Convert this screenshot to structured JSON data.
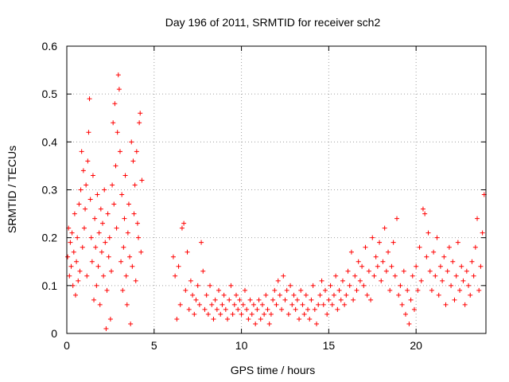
{
  "chart_data": {
    "type": "scatter",
    "title": "Day 196 of 2011, SRMTID for receiver sch2",
    "xlabel": "GPS time / hours",
    "ylabel": "SRMTID / TECUs",
    "xlim": [
      0,
      24
    ],
    "ylim": [
      0,
      0.6
    ],
    "x_ticks": [
      0,
      5,
      10,
      15,
      20
    ],
    "x_tick_labels": [
      "0",
      "5",
      "10",
      "15",
      "20"
    ],
    "y_ticks": [
      0,
      0.1,
      0.2,
      0.3,
      0.4,
      0.5,
      0.6
    ],
    "y_tick_labels": [
      "0",
      "0.1",
      "0.2",
      "0.3",
      "0.4",
      "0.5",
      "0.6"
    ],
    "grid": true,
    "marker": "plus",
    "color": "#ff0000",
    "series": [
      {
        "name": "sch2",
        "points": [
          [
            0.05,
            0.16
          ],
          [
            0.1,
            0.22
          ],
          [
            0.15,
            0.12
          ],
          [
            0.2,
            0.19
          ],
          [
            0.25,
            0.14
          ],
          [
            0.3,
            0.21
          ],
          [
            0.35,
            0.1
          ],
          [
            0.4,
            0.17
          ],
          [
            0.45,
            0.25
          ],
          [
            0.5,
            0.08
          ],
          [
            0.55,
            0.15
          ],
          [
            0.6,
            0.2
          ],
          [
            0.65,
            0.11
          ],
          [
            0.7,
            0.27
          ],
          [
            0.75,
            0.13
          ],
          [
            0.8,
            0.3
          ],
          [
            0.85,
            0.38
          ],
          [
            0.9,
            0.18
          ],
          [
            0.95,
            0.34
          ],
          [
            1.0,
            0.22
          ],
          [
            1.05,
            0.26
          ],
          [
            1.1,
            0.31
          ],
          [
            1.15,
            0.12
          ],
          [
            1.2,
            0.36
          ],
          [
            1.25,
            0.42
          ],
          [
            1.3,
            0.49
          ],
          [
            1.35,
            0.28
          ],
          [
            1.4,
            0.2
          ],
          [
            1.45,
            0.15
          ],
          [
            1.5,
            0.33
          ],
          [
            1.55,
            0.07
          ],
          [
            1.6,
            0.24
          ],
          [
            1.65,
            0.18
          ],
          [
            1.7,
            0.1
          ],
          [
            1.75,
            0.29
          ],
          [
            1.8,
            0.14
          ],
          [
            1.85,
            0.21
          ],
          [
            1.9,
            0.06
          ],
          [
            1.95,
            0.26
          ],
          [
            2.0,
            0.17
          ],
          [
            2.05,
            0.23
          ],
          [
            2.1,
            0.12
          ],
          [
            2.15,
            0.3
          ],
          [
            2.2,
            0.19
          ],
          [
            2.25,
            0.01
          ],
          [
            2.3,
            0.09
          ],
          [
            2.35,
            0.25
          ],
          [
            2.4,
            0.16
          ],
          [
            2.45,
            0.2
          ],
          [
            2.5,
            0.03
          ],
          [
            2.55,
            0.13
          ],
          [
            2.6,
            0.31
          ],
          [
            2.65,
            0.44
          ],
          [
            2.7,
            0.27
          ],
          [
            2.75,
            0.48
          ],
          [
            2.8,
            0.35
          ],
          [
            2.85,
            0.22
          ],
          [
            2.9,
            0.42
          ],
          [
            2.95,
            0.54
          ],
          [
            3.0,
            0.51
          ],
          [
            3.05,
            0.38
          ],
          [
            3.1,
            0.15
          ],
          [
            3.15,
            0.29
          ],
          [
            3.2,
            0.09
          ],
          [
            3.25,
            0.18
          ],
          [
            3.3,
            0.24
          ],
          [
            3.35,
            0.33
          ],
          [
            3.4,
            0.12
          ],
          [
            3.45,
            0.06
          ],
          [
            3.5,
            0.21
          ],
          [
            3.55,
            0.27
          ],
          [
            3.6,
            0.16
          ],
          [
            3.65,
            0.02
          ],
          [
            3.7,
            0.4
          ],
          [
            3.75,
            0.14
          ],
          [
            3.8,
            0.36
          ],
          [
            3.85,
            0.25
          ],
          [
            3.9,
            0.31
          ],
          [
            3.95,
            0.11
          ],
          [
            4.0,
            0.38
          ],
          [
            4.05,
            0.23
          ],
          [
            4.1,
            0.2
          ],
          [
            4.15,
            0.44
          ],
          [
            4.2,
            0.46
          ],
          [
            4.25,
            0.17
          ],
          [
            4.3,
            0.32
          ],
          [
            6.1,
            0.16
          ],
          [
            6.2,
            0.12
          ],
          [
            6.3,
            0.03
          ],
          [
            6.4,
            0.14
          ],
          [
            6.5,
            0.06
          ],
          [
            6.6,
            0.22
          ],
          [
            6.7,
            0.23
          ],
          [
            6.8,
            0.09
          ],
          [
            6.9,
            0.17
          ],
          [
            7.0,
            0.05
          ],
          [
            7.1,
            0.11
          ],
          [
            7.2,
            0.08
          ],
          [
            7.3,
            0.04
          ],
          [
            7.4,
            0.07
          ],
          [
            7.5,
            0.1
          ],
          [
            7.6,
            0.06
          ],
          [
            7.7,
            0.19
          ],
          [
            7.8,
            0.13
          ],
          [
            7.9,
            0.05
          ],
          [
            8.0,
            0.08
          ],
          [
            8.1,
            0.04
          ],
          [
            8.2,
            0.1
          ],
          [
            8.3,
            0.06
          ],
          [
            8.4,
            0.03
          ],
          [
            8.5,
            0.07
          ],
          [
            8.6,
            0.05
          ],
          [
            8.7,
            0.09
          ],
          [
            8.8,
            0.04
          ],
          [
            8.9,
            0.06
          ],
          [
            9.0,
            0.08
          ],
          [
            9.1,
            0.05
          ],
          [
            9.2,
            0.03
          ],
          [
            9.3,
            0.07
          ],
          [
            9.4,
            0.1
          ],
          [
            9.5,
            0.04
          ],
          [
            9.6,
            0.06
          ],
          [
            9.7,
            0.08
          ],
          [
            9.8,
            0.05
          ],
          [
            9.9,
            0.07
          ],
          [
            10.0,
            0.04
          ],
          [
            10.1,
            0.06
          ],
          [
            10.2,
            0.09
          ],
          [
            10.3,
            0.05
          ],
          [
            10.4,
            0.03
          ],
          [
            10.5,
            0.07
          ],
          [
            10.6,
            0.04
          ],
          [
            10.7,
            0.06
          ],
          [
            10.8,
            0.02
          ],
          [
            10.9,
            0.05
          ],
          [
            11.0,
            0.07
          ],
          [
            11.1,
            0.03
          ],
          [
            11.2,
            0.06
          ],
          [
            11.3,
            0.04
          ],
          [
            11.4,
            0.08
          ],
          [
            11.5,
            0.05
          ],
          [
            11.6,
            0.02
          ],
          [
            11.7,
            0.04
          ],
          [
            11.8,
            0.07
          ],
          [
            11.9,
            0.09
          ],
          [
            12.0,
            0.06
          ],
          [
            12.1,
            0.11
          ],
          [
            12.2,
            0.08
          ],
          [
            12.3,
            0.05
          ],
          [
            12.4,
            0.12
          ],
          [
            12.5,
            0.07
          ],
          [
            12.6,
            0.09
          ],
          [
            12.7,
            0.04
          ],
          [
            12.8,
            0.1
          ],
          [
            12.9,
            0.06
          ],
          [
            13.0,
            0.08
          ],
          [
            13.1,
            0.05
          ],
          [
            13.2,
            0.07
          ],
          [
            13.3,
            0.03
          ],
          [
            13.4,
            0.09
          ],
          [
            13.5,
            0.06
          ],
          [
            13.6,
            0.04
          ],
          [
            13.7,
            0.08
          ],
          [
            13.8,
            0.05
          ],
          [
            13.9,
            0.03
          ],
          [
            14.0,
            0.07
          ],
          [
            14.1,
            0.1
          ],
          [
            14.2,
            0.05
          ],
          [
            14.3,
            0.02
          ],
          [
            14.4,
            0.06
          ],
          [
            14.5,
            0.08
          ],
          [
            14.6,
            0.11
          ],
          [
            14.7,
            0.06
          ],
          [
            14.8,
            0.09
          ],
          [
            14.9,
            0.04
          ],
          [
            15.0,
            0.07
          ],
          [
            15.1,
            0.1
          ],
          [
            15.2,
            0.06
          ],
          [
            15.3,
            0.08
          ],
          [
            15.4,
            0.12
          ],
          [
            15.5,
            0.05
          ],
          [
            15.6,
            0.09
          ],
          [
            15.7,
            0.07
          ],
          [
            15.8,
            0.11
          ],
          [
            15.9,
            0.06
          ],
          [
            16.0,
            0.08
          ],
          [
            16.1,
            0.13
          ],
          [
            16.2,
            0.1
          ],
          [
            16.3,
            0.17
          ],
          [
            16.4,
            0.07
          ],
          [
            16.5,
            0.12
          ],
          [
            16.6,
            0.09
          ],
          [
            16.7,
            0.15
          ],
          [
            16.8,
            0.11
          ],
          [
            16.9,
            0.14
          ],
          [
            17.0,
            0.1
          ],
          [
            17.1,
            0.18
          ],
          [
            17.2,
            0.08
          ],
          [
            17.3,
            0.13
          ],
          [
            17.4,
            0.07
          ],
          [
            17.5,
            0.2
          ],
          [
            17.6,
            0.12
          ],
          [
            17.7,
            0.16
          ],
          [
            17.8,
            0.14
          ],
          [
            17.9,
            0.19
          ],
          [
            18.0,
            0.11
          ],
          [
            18.1,
            0.15
          ],
          [
            18.2,
            0.22
          ],
          [
            18.3,
            0.13
          ],
          [
            18.4,
            0.17
          ],
          [
            18.5,
            0.09
          ],
          [
            18.6,
            0.14
          ],
          [
            18.7,
            0.19
          ],
          [
            18.8,
            0.12
          ],
          [
            18.9,
            0.24
          ],
          [
            19.0,
            0.08
          ],
          [
            19.1,
            0.1
          ],
          [
            19.2,
            0.06
          ],
          [
            19.3,
            0.13
          ],
          [
            19.4,
            0.04
          ],
          [
            19.5,
            0.09
          ],
          [
            19.6,
            0.02
          ],
          [
            19.7,
            0.07
          ],
          [
            19.8,
            0.12
          ],
          [
            19.9,
            0.05
          ],
          [
            20.0,
            0.14
          ],
          [
            20.1,
            0.09
          ],
          [
            20.2,
            0.18
          ],
          [
            20.3,
            0.11
          ],
          [
            20.4,
            0.26
          ],
          [
            20.5,
            0.25
          ],
          [
            20.6,
            0.16
          ],
          [
            20.7,
            0.21
          ],
          [
            20.8,
            0.13
          ],
          [
            20.9,
            0.09
          ],
          [
            21.0,
            0.17
          ],
          [
            21.1,
            0.12
          ],
          [
            21.2,
            0.2
          ],
          [
            21.3,
            0.08
          ],
          [
            21.4,
            0.14
          ],
          [
            21.5,
            0.11
          ],
          [
            21.6,
            0.16
          ],
          [
            21.7,
            0.06
          ],
          [
            21.8,
            0.13
          ],
          [
            21.9,
            0.18
          ],
          [
            22.0,
            0.1
          ],
          [
            22.1,
            0.15
          ],
          [
            22.2,
            0.07
          ],
          [
            22.3,
            0.12
          ],
          [
            22.4,
            0.19
          ],
          [
            22.5,
            0.09
          ],
          [
            22.6,
            0.14
          ],
          [
            22.7,
            0.11
          ],
          [
            22.8,
            0.06
          ],
          [
            22.9,
            0.13
          ],
          [
            23.0,
            0.1
          ],
          [
            23.1,
            0.08
          ],
          [
            23.2,
            0.15
          ],
          [
            23.3,
            0.12
          ],
          [
            23.4,
            0.18
          ],
          [
            23.5,
            0.24
          ],
          [
            23.6,
            0.09
          ],
          [
            23.7,
            0.14
          ],
          [
            23.8,
            0.21
          ],
          [
            23.9,
            0.29
          ]
        ]
      }
    ]
  }
}
